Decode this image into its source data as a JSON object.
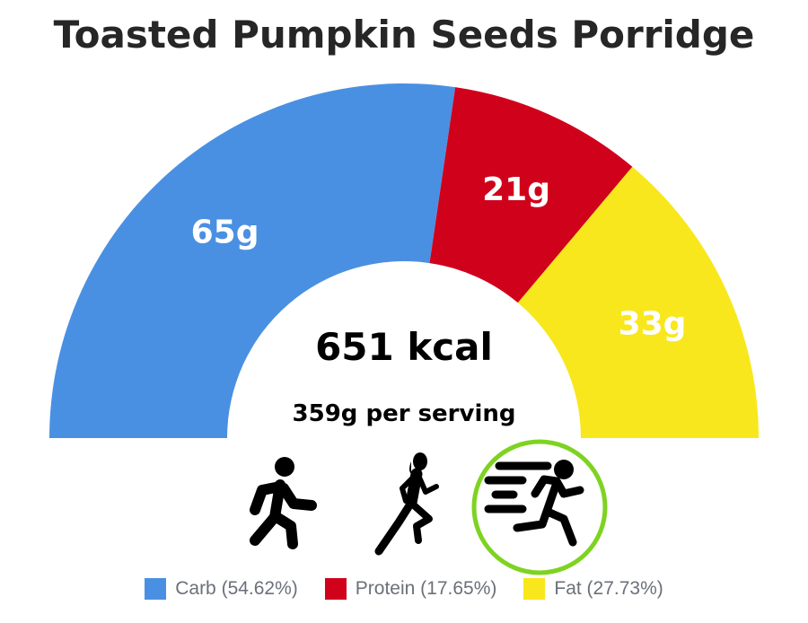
{
  "title": "Toasted Pumpkin Seeds Porridge",
  "center": {
    "calories": "651 kcal",
    "serving": "359g per serving"
  },
  "activity_icons": [
    {
      "name": "walking-icon",
      "selected": false
    },
    {
      "name": "running-icon",
      "selected": false
    },
    {
      "name": "sprinting-icon",
      "selected": true
    }
  ],
  "colors": {
    "highlight": "#7ed321"
  },
  "chart_data": {
    "type": "pie",
    "variant": "half-donut",
    "categories": [
      "Carb",
      "Protein",
      "Fat"
    ],
    "values": [
      65,
      21,
      33
    ],
    "units": "g",
    "data_labels": [
      "65g",
      "21g",
      "33g"
    ],
    "percentages": [
      54.62,
      17.65,
      27.73
    ],
    "colors": [
      "#4a90e2",
      "#d0021b",
      "#f8e71c"
    ],
    "legend": [
      "Carb (54.62%)",
      "Protein (17.65%)",
      "Fat (27.73%)"
    ],
    "legend_placement": "bottom"
  }
}
